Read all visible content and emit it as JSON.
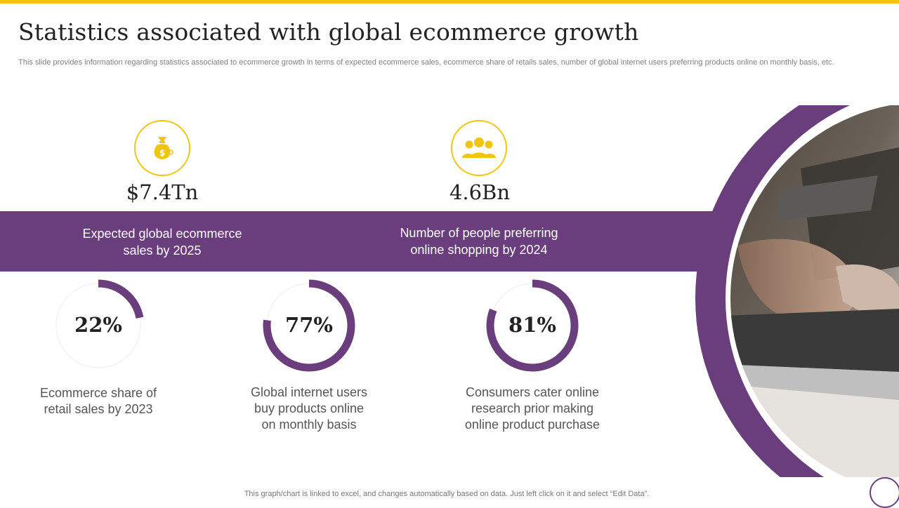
{
  "slide": {
    "title": "Statistics associated with global ecommerce growth",
    "subtitle": "This slide provides information regarding statistics associated to ecommerce growth in terms of expected ecommerce sales, ecommerce share of retails sales, number of global internet users preferring products online on monthly basis, etc.",
    "footer": "This graph/chart is linked to excel,  and changes automatically based on data. Just left click on it and select “Edit Data”."
  },
  "colors": {
    "accent_yellow": "#f1c40f",
    "primary_purple": "#6a3d7c",
    "donut_track": "#f2f2f2"
  },
  "highlights": [
    {
      "icon": "money-bag-icon",
      "value": "$7.4Tn",
      "label_line1": "Expected global ecommerce",
      "label_line2": "sales by 2025"
    },
    {
      "icon": "people-group-icon",
      "value": "4.6Bn",
      "label_line1": "Number of people preferring",
      "label_line2": "online shopping by 2024"
    }
  ],
  "donuts": [
    {
      "percent": 22,
      "display": "22%",
      "label_line1": "Ecommerce share of",
      "label_line2": "retail sales by 2023",
      "label_line3": ""
    },
    {
      "percent": 77,
      "display": "77%",
      "label_line1": "Global internet users",
      "label_line2": "buy products online",
      "label_line3": "on monthly basis"
    },
    {
      "percent": 81,
      "display": "81%",
      "label_line1": "Consumers cater online",
      "label_line2": "research prior making",
      "label_line3": "online product purchase"
    }
  ],
  "image": {
    "description_icon": "laptop-shopping-photo"
  }
}
